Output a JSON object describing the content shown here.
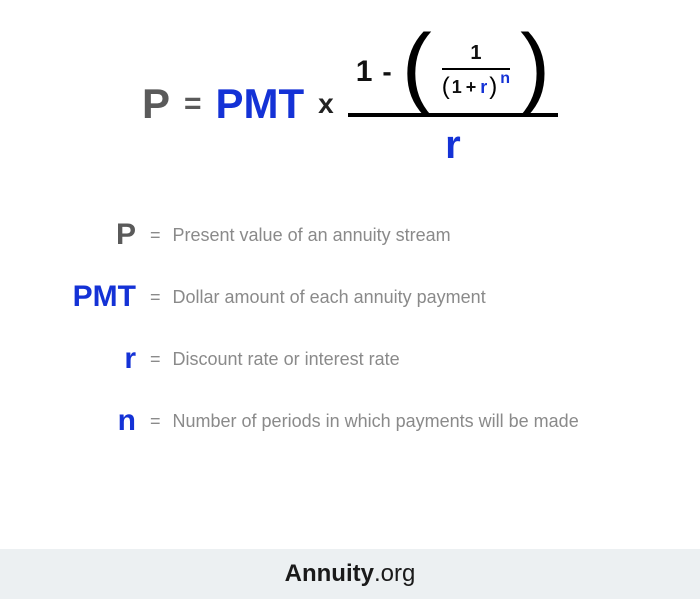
{
  "colors": {
    "accent": "#1432d6",
    "text_gray": "#5a5a5a",
    "desc_gray": "#8a8a8a",
    "black": "#000000",
    "footer_bg": "#ecf0f2"
  },
  "typography": {
    "main_symbol_size_pt": 42,
    "legend_symbol_size_pt": 30,
    "legend_desc_size_pt": 18,
    "font_family": "Arial"
  },
  "formula": {
    "lhs": "P",
    "eq": "=",
    "pmt": "PMT",
    "times": "x",
    "numerator_one": "1",
    "minus": "-",
    "inner_numerator": "1",
    "inner_den_lparen": "(",
    "inner_den_one": "1",
    "inner_den_plus": "+",
    "inner_den_r": "r",
    "inner_den_rparen": ")",
    "inner_den_exp": "n",
    "denominator": "r"
  },
  "legend": [
    {
      "symbol": "P",
      "color": "gray",
      "desc": "Present value of an annuity stream"
    },
    {
      "symbol": "PMT",
      "color": "blue",
      "desc": "Dollar amount of each annuity payment"
    },
    {
      "symbol": "r",
      "color": "blue",
      "desc": "Discount rate or interest rate"
    },
    {
      "symbol": "n",
      "color": "blue",
      "desc": "Number of periods in which payments will be made"
    }
  ],
  "legend_eq": "=",
  "footer": {
    "brand": "Annuity",
    "suffix": ".org"
  }
}
